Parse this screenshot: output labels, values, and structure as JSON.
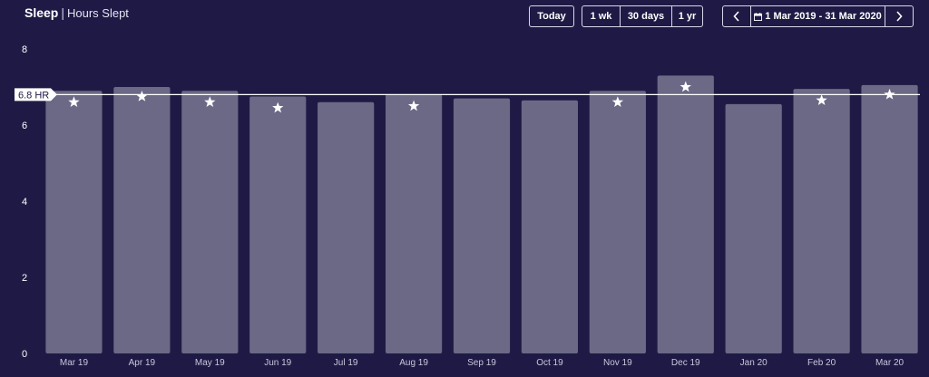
{
  "header": {
    "title": "Sleep",
    "separator": "|",
    "subtitle": "Hours Slept"
  },
  "controls": {
    "today": "Today",
    "ranges": [
      "1 wk",
      "30 days",
      "1 yr"
    ],
    "prev_icon": "chevron-left-icon",
    "next_icon": "chevron-right-icon",
    "calendar_icon": "calendar-icon",
    "date_range": "1 Mar 2019 - 31 Mar 2020"
  },
  "colors": {
    "background": "#1f1a45",
    "bar": "#6b6985",
    "line": "#ffffff",
    "star": "#ffffff"
  },
  "chart_data": {
    "type": "bar",
    "categories": [
      "Mar 19",
      "Apr 19",
      "May 19",
      "Jun 19",
      "Jul 19",
      "Aug 19",
      "Sep 19",
      "Oct 19",
      "Nov 19",
      "Dec 19",
      "Jan 20",
      "Feb 20",
      "Mar 20"
    ],
    "series": [
      {
        "values": [
          6.9,
          7.0,
          6.9,
          6.75,
          6.6,
          6.8,
          6.7,
          6.65,
          6.9,
          7.3,
          6.55,
          6.95,
          7.05
        ]
      },
      {
        "marker": "star",
        "values": [
          6.6,
          6.75,
          6.6,
          6.45,
          null,
          6.5,
          null,
          null,
          6.6,
          7.0,
          null,
          6.65,
          6.8
        ]
      }
    ],
    "reference_line": {
      "value": 6.8,
      "label": "6.8 HR"
    },
    "ylim": [
      0,
      8
    ],
    "yticks": [
      0,
      2,
      4,
      6,
      8
    ],
    "grid": false,
    "legend": "none"
  }
}
